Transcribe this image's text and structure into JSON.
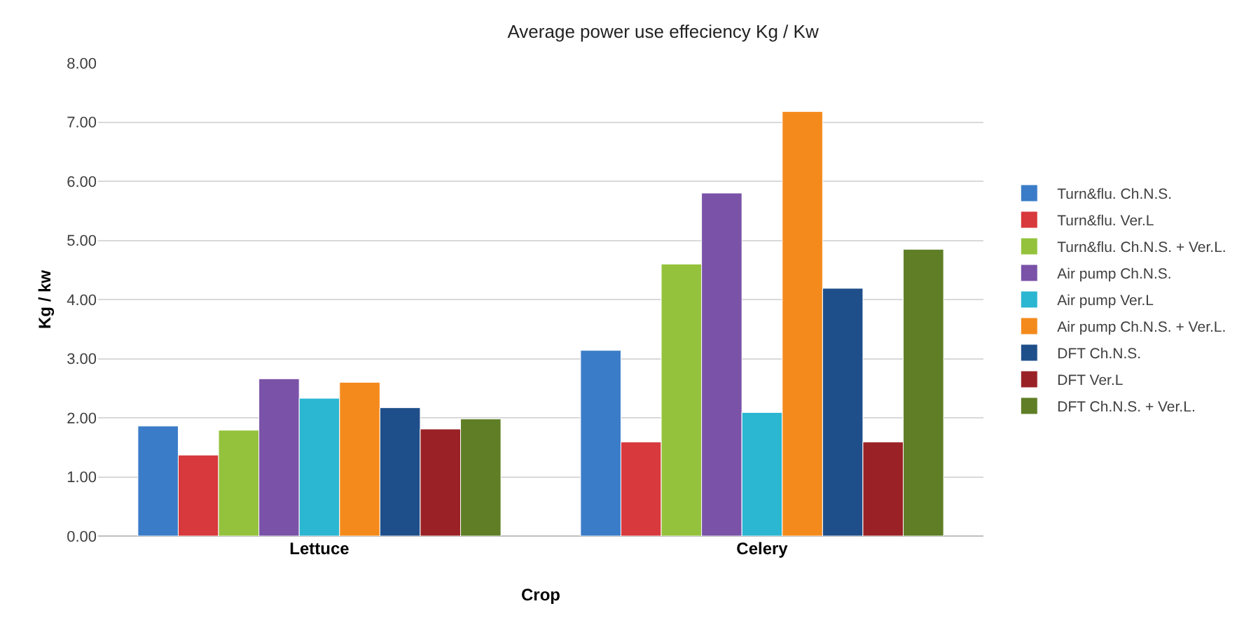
{
  "chart_data": {
    "type": "bar",
    "title": "Average power use effeciency Kg / Kw",
    "xlabel": "Crop",
    "ylabel": "Kg / kw",
    "categories": [
      "Lettuce",
      "Celery"
    ],
    "series": [
      {
        "name": "Turn&flu. Ch.N.S.",
        "color": "#3a7cc8",
        "values": [
          1.86,
          3.14
        ]
      },
      {
        "name": "Turn&flu. Ver.L",
        "color": "#d8393c",
        "values": [
          1.37,
          1.59
        ]
      },
      {
        "name": "Turn&flu. Ch.N.S. + Ver.L.",
        "color": "#94c23c",
        "values": [
          1.79,
          4.6
        ]
      },
      {
        "name": "Air pump Ch.N.S.",
        "color": "#7a52a8",
        "values": [
          2.66,
          5.8
        ]
      },
      {
        "name": "Air pump Ver.L",
        "color": "#2bb6d2",
        "values": [
          2.33,
          2.09
        ]
      },
      {
        "name": "Air pump Ch.N.S. + Ver.L.",
        "color": "#f48a1c",
        "values": [
          2.6,
          7.18
        ]
      },
      {
        "name": "DFT Ch.N.S.",
        "color": "#1f4f8a",
        "values": [
          2.17,
          4.19
        ]
      },
      {
        "name": "DFT Ver.L",
        "color": "#9a2226",
        "values": [
          1.81,
          1.59
        ]
      },
      {
        "name": "DFT Ch.N.S. + Ver.L.",
        "color": "#5f7e26",
        "values": [
          1.98,
          4.85
        ]
      }
    ],
    "ylim": [
      0,
      8
    ],
    "yticks": [
      {
        "value": 0,
        "label": "0.00"
      },
      {
        "value": 1,
        "label": "1.00"
      },
      {
        "value": 2,
        "label": "2.00"
      },
      {
        "value": 3,
        "label": "3.00"
      },
      {
        "value": 4,
        "label": "4.00"
      },
      {
        "value": 5,
        "label": "5.00"
      },
      {
        "value": 6,
        "label": "6.00"
      },
      {
        "value": 7,
        "label": "7.00"
      },
      {
        "value": 8,
        "label": "8.00"
      }
    ],
    "grid": "y",
    "legend": "right"
  }
}
